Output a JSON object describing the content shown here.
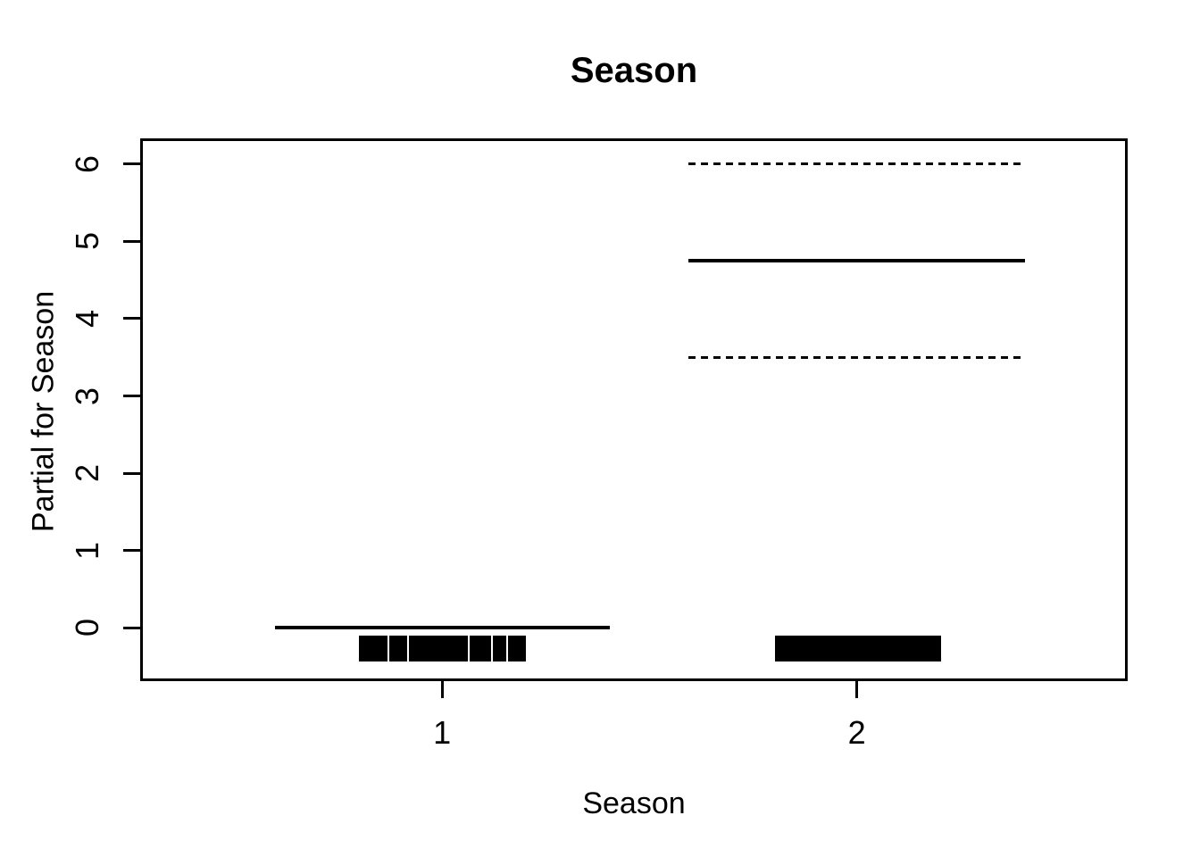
{
  "page": {
    "background_color": "#ffffff",
    "foreground_color": "#000000"
  },
  "chart_data": {
    "type": "line",
    "subtype": "partial-residual-termplot",
    "title": "Season",
    "xlabel": "Season",
    "ylabel": "Partial for Season",
    "grid": false,
    "legend": false,
    "x_range": [
      0.272,
      2.653
    ],
    "y_range": [
      -0.692,
      6.334
    ],
    "x_ticks": [
      {
        "value": 1,
        "label": "1"
      },
      {
        "value": 2,
        "label": "2"
      }
    ],
    "y_ticks": [
      {
        "value": 0,
        "label": "0"
      },
      {
        "value": 1,
        "label": "1"
      },
      {
        "value": 2,
        "label": "2"
      },
      {
        "value": 3,
        "label": "3"
      },
      {
        "value": 4,
        "label": "4"
      },
      {
        "value": 5,
        "label": "5"
      },
      {
        "value": 6,
        "label": "6"
      }
    ],
    "series": [
      {
        "name": "partial-fit-season-1",
        "style": "solid",
        "y": 0.0,
        "x_from": 0.597,
        "x_to": 1.405
      },
      {
        "name": "partial-fit-season-2",
        "style": "solid",
        "y": 4.75,
        "x_from": 1.593,
        "x_to": 2.405
      },
      {
        "name": "se-upper-season-2",
        "style": "dashed",
        "y": 6.0,
        "x_from": 1.593,
        "x_to": 2.405
      },
      {
        "name": "se-lower-season-2",
        "style": "dashed",
        "y": 3.5,
        "x_from": 1.593,
        "x_to": 2.405
      }
    ],
    "rug": {
      "y_top": -0.1,
      "y_bottom": -0.44,
      "segments": [
        {
          "group": "1",
          "x_from": 0.8,
          "x_to": 0.868
        },
        {
          "group": "1",
          "x_from": 0.872,
          "x_to": 0.916
        },
        {
          "group": "1",
          "x_from": 0.921,
          "x_to": 1.062
        },
        {
          "group": "1",
          "x_from": 1.067,
          "x_to": 1.117
        },
        {
          "group": "1",
          "x_from": 1.122,
          "x_to": 1.154
        },
        {
          "group": "1",
          "x_from": 1.159,
          "x_to": 1.202
        },
        {
          "group": "2",
          "x_from": 1.802,
          "x_to": 2.203
        }
      ]
    },
    "values_summary": {
      "season_1": {
        "partial": 0.0,
        "se_band": null
      },
      "season_2": {
        "partial": 4.75,
        "se_band": [
          3.5,
          6.0
        ]
      }
    }
  }
}
